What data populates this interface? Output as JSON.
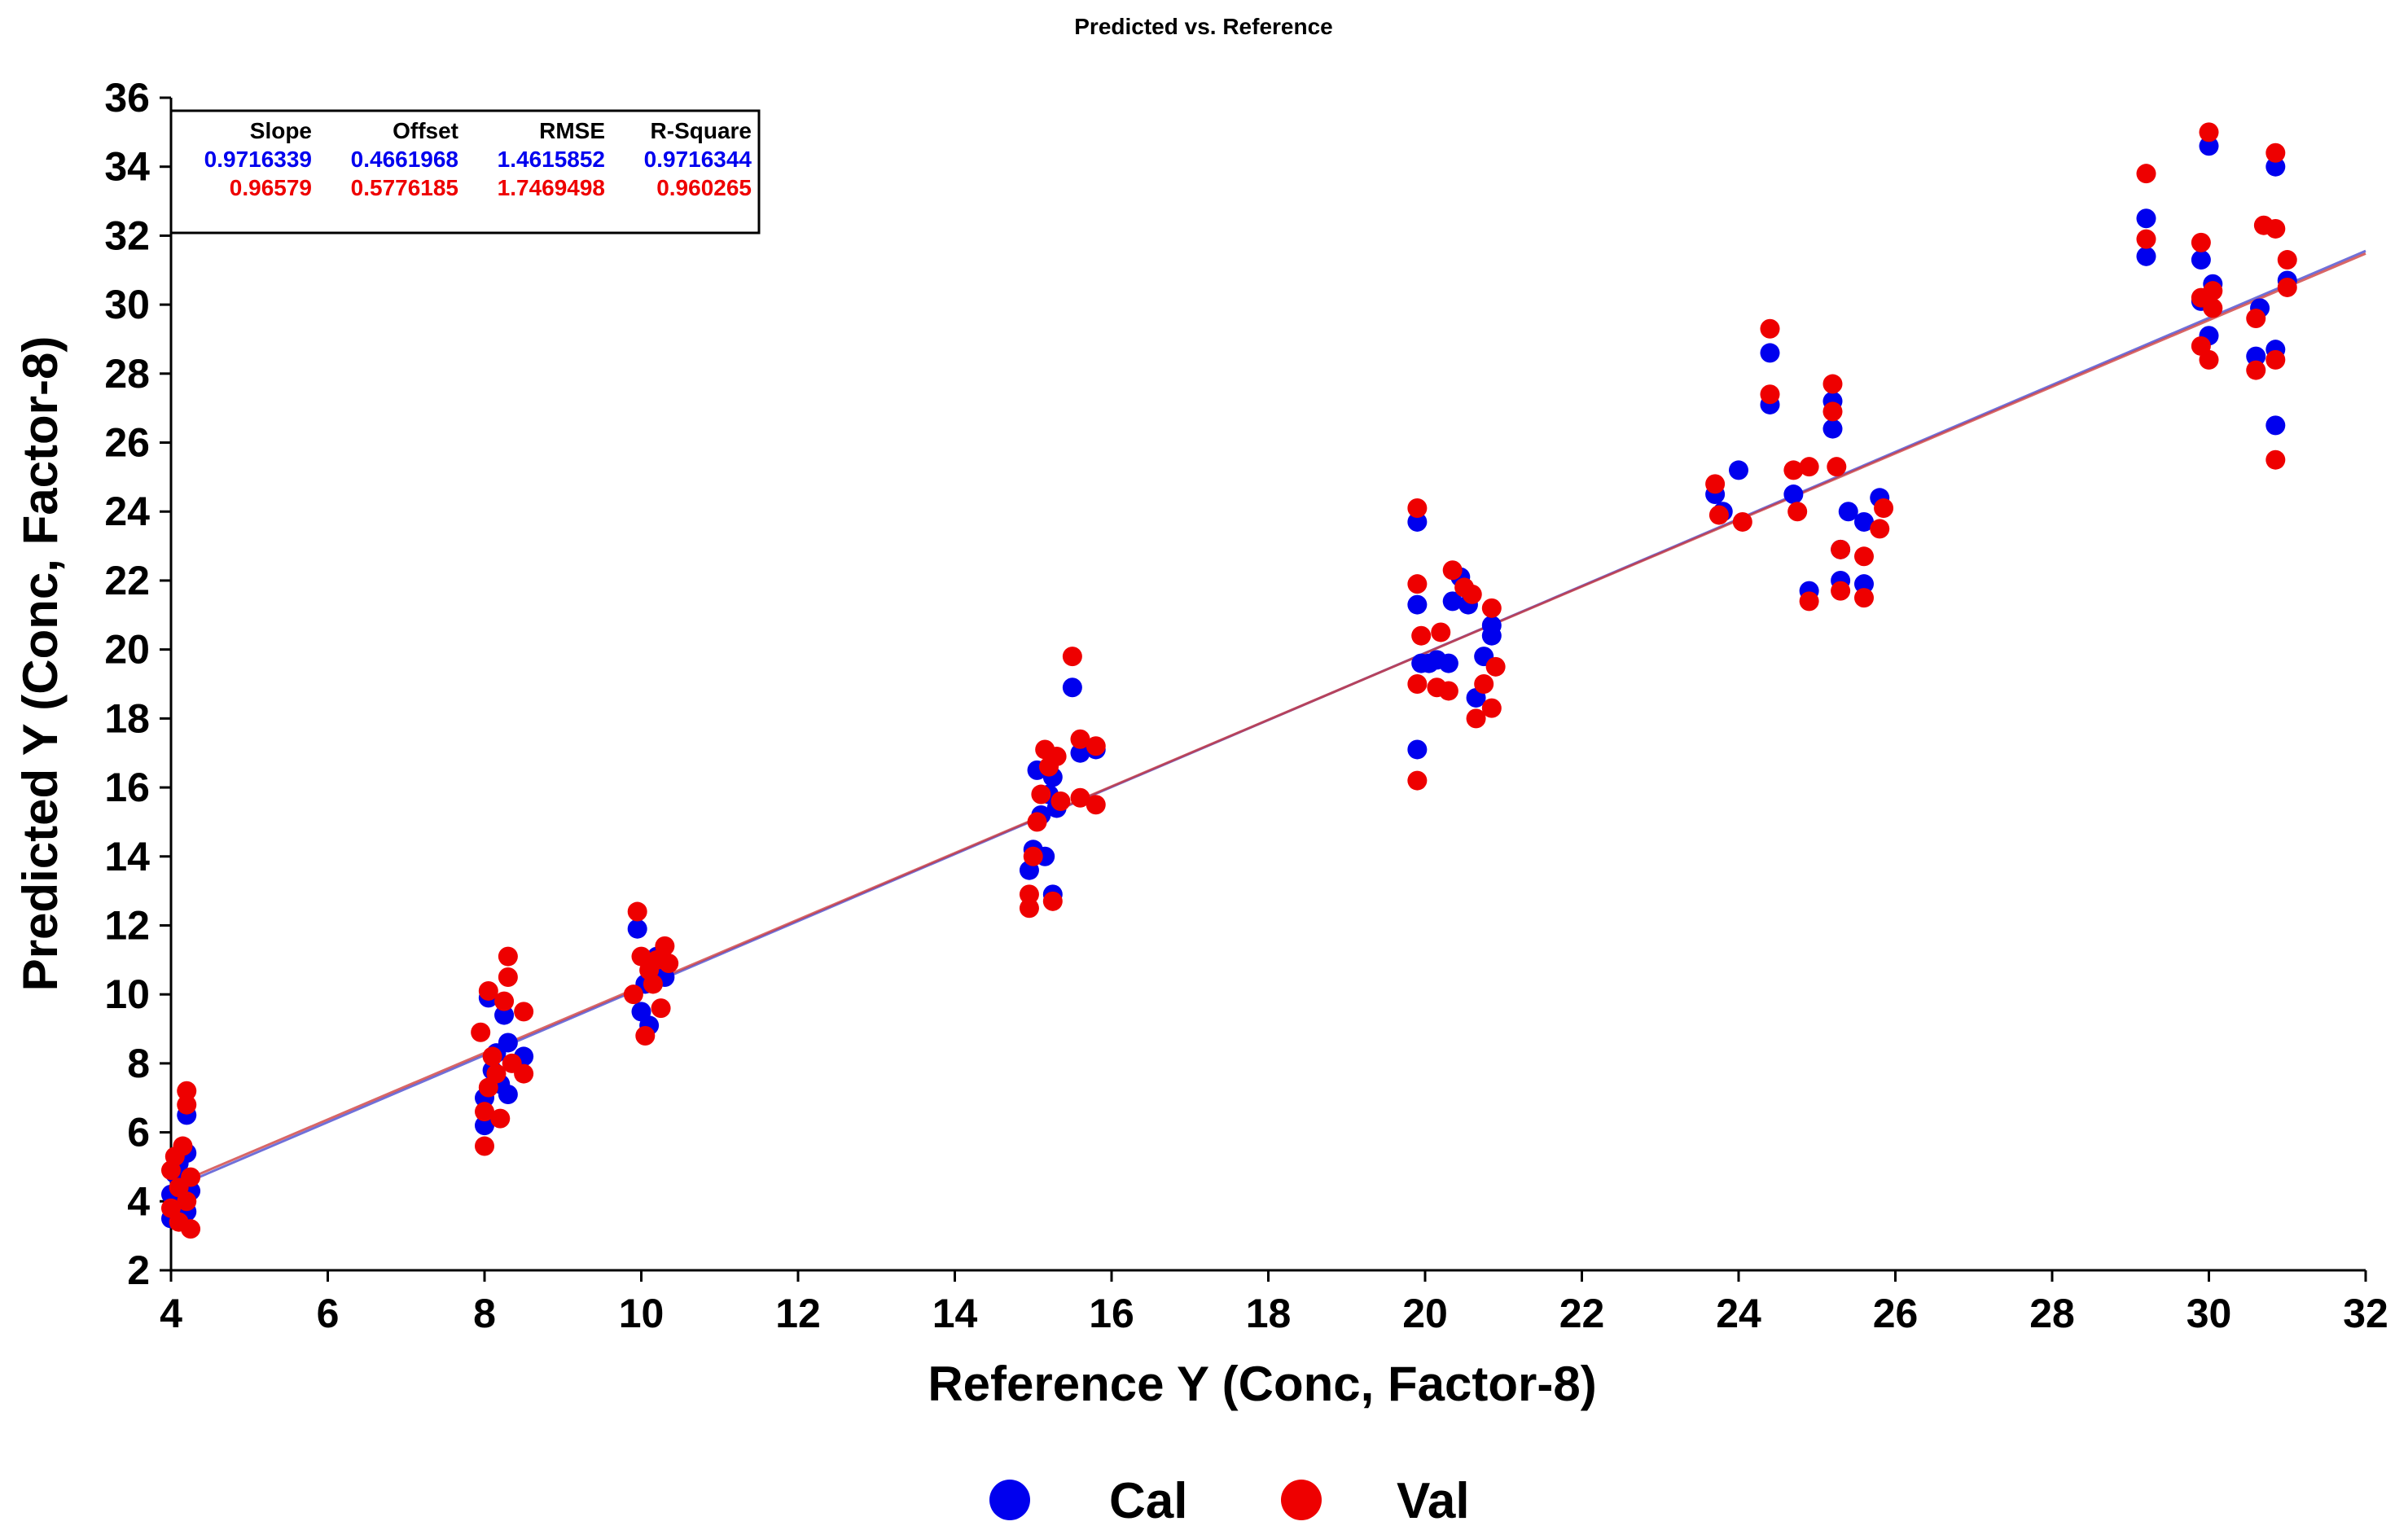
{
  "chart_data": {
    "type": "scatter",
    "title": "Predicted vs. Reference",
    "xlabel": "Reference Y (Conc, Factor-8)",
    "ylabel": "Predicted Y (Conc, Factor-8)",
    "xlim": [
      4,
      32
    ],
    "ylim": [
      2,
      36
    ],
    "xticks": [
      4,
      6,
      8,
      10,
      12,
      14,
      16,
      18,
      20,
      22,
      24,
      26,
      28,
      30,
      32
    ],
    "yticks": [
      2,
      4,
      6,
      8,
      10,
      12,
      14,
      16,
      18,
      20,
      22,
      24,
      26,
      28,
      30,
      32,
      34,
      36
    ],
    "grid": false,
    "legend_position": "bottom-center",
    "colors": {
      "cal": "#0000ee",
      "val": "#ee0000",
      "line": "#7a3a8c"
    },
    "stats": {
      "headers": [
        "Slope",
        "Offset",
        "RMSE",
        "R-Square"
      ],
      "rows": [
        {
          "series": "Cal",
          "values": [
            "0.9716339",
            "0.4661968",
            "1.4615852",
            "0.9716344"
          ]
        },
        {
          "series": "Val",
          "values": [
            "0.96579",
            "0.5776185",
            "1.7469498",
            "0.960265"
          ]
        }
      ]
    },
    "regression_lines": [
      {
        "series": "Cal",
        "slope": 0.9716339,
        "offset": 0.4661968
      },
      {
        "series": "Val",
        "slope": 0.96579,
        "offset": 0.5776185
      }
    ],
    "series": [
      {
        "name": "Cal",
        "points": [
          [
            4.0,
            3.5
          ],
          [
            4.0,
            4.2
          ],
          [
            4.05,
            4.8
          ],
          [
            4.1,
            5.1
          ],
          [
            4.1,
            3.9
          ],
          [
            4.15,
            4.6
          ],
          [
            4.2,
            5.4
          ],
          [
            4.2,
            6.5
          ],
          [
            4.2,
            3.7
          ],
          [
            4.25,
            4.3
          ],
          [
            8.0,
            6.2
          ],
          [
            8.0,
            7.0
          ],
          [
            8.05,
            9.9
          ],
          [
            8.1,
            7.8
          ],
          [
            8.15,
            8.3
          ],
          [
            8.2,
            7.4
          ],
          [
            8.25,
            9.4
          ],
          [
            8.3,
            7.1
          ],
          [
            8.3,
            8.6
          ],
          [
            8.5,
            8.2
          ],
          [
            9.95,
            11.9
          ],
          [
            10.0,
            9.5
          ],
          [
            10.05,
            10.3
          ],
          [
            10.1,
            9.1
          ],
          [
            10.15,
            10.8
          ],
          [
            10.2,
            11.1
          ],
          [
            10.3,
            10.5
          ],
          [
            14.95,
            13.6
          ],
          [
            15.0,
            14.2
          ],
          [
            15.05,
            16.5
          ],
          [
            15.1,
            15.2
          ],
          [
            15.15,
            14.0
          ],
          [
            15.2,
            15.8
          ],
          [
            15.25,
            16.3
          ],
          [
            15.25,
            12.9
          ],
          [
            15.3,
            15.4
          ],
          [
            15.5,
            18.9
          ],
          [
            15.6,
            17.0
          ],
          [
            15.8,
            17.1
          ],
          [
            19.9,
            17.1
          ],
          [
            19.9,
            21.3
          ],
          [
            19.9,
            23.7
          ],
          [
            19.95,
            19.6
          ],
          [
            20.05,
            19.6
          ],
          [
            20.15,
            19.7
          ],
          [
            20.3,
            19.6
          ],
          [
            20.35,
            21.4
          ],
          [
            20.45,
            22.1
          ],
          [
            20.55,
            21.3
          ],
          [
            20.65,
            18.6
          ],
          [
            20.75,
            19.8
          ],
          [
            20.85,
            20.4
          ],
          [
            20.85,
            20.7
          ],
          [
            23.7,
            24.5
          ],
          [
            23.8,
            24.0
          ],
          [
            24.0,
            25.2
          ],
          [
            24.4,
            28.6
          ],
          [
            24.4,
            27.1
          ],
          [
            24.7,
            24.5
          ],
          [
            24.9,
            21.7
          ],
          [
            25.2,
            27.2
          ],
          [
            25.2,
            26.4
          ],
          [
            25.3,
            22.9
          ],
          [
            25.3,
            22.0
          ],
          [
            25.4,
            24.0
          ],
          [
            25.6,
            23.7
          ],
          [
            25.6,
            21.9
          ],
          [
            25.8,
            24.4
          ],
          [
            29.2,
            32.5
          ],
          [
            29.2,
            31.4
          ],
          [
            29.9,
            31.3
          ],
          [
            29.9,
            30.1
          ],
          [
            30.0,
            34.6
          ],
          [
            30.0,
            29.1
          ],
          [
            30.05,
            30.6
          ],
          [
            30.6,
            28.5
          ],
          [
            30.65,
            29.9
          ],
          [
            30.85,
            34.0
          ],
          [
            30.85,
            28.7
          ],
          [
            30.85,
            26.5
          ],
          [
            31.0,
            30.7
          ]
        ]
      },
      {
        "name": "Val",
        "points": [
          [
            4.0,
            3.8
          ],
          [
            4.0,
            4.9
          ],
          [
            4.05,
            5.3
          ],
          [
            4.1,
            4.4
          ],
          [
            4.1,
            3.4
          ],
          [
            4.15,
            5.6
          ],
          [
            4.2,
            4.0
          ],
          [
            4.2,
            7.2
          ],
          [
            4.2,
            6.8
          ],
          [
            4.25,
            3.2
          ],
          [
            4.25,
            4.7
          ],
          [
            7.95,
            8.9
          ],
          [
            8.0,
            5.6
          ],
          [
            8.0,
            6.6
          ],
          [
            8.05,
            7.3
          ],
          [
            8.05,
            10.1
          ],
          [
            8.1,
            8.2
          ],
          [
            8.15,
            7.7
          ],
          [
            8.2,
            6.4
          ],
          [
            8.25,
            9.8
          ],
          [
            8.3,
            11.1
          ],
          [
            8.3,
            10.5
          ],
          [
            8.35,
            8.0
          ],
          [
            8.5,
            9.5
          ],
          [
            8.5,
            7.7
          ],
          [
            9.9,
            10.0
          ],
          [
            9.95,
            12.4
          ],
          [
            10.0,
            11.1
          ],
          [
            10.05,
            8.8
          ],
          [
            10.1,
            10.7
          ],
          [
            10.15,
            10.3
          ],
          [
            10.2,
            11.0
          ],
          [
            10.25,
            9.6
          ],
          [
            10.3,
            11.4
          ],
          [
            10.35,
            10.9
          ],
          [
            14.95,
            12.5
          ],
          [
            14.95,
            12.9
          ],
          [
            15.0,
            14.0
          ],
          [
            15.05,
            15.0
          ],
          [
            15.1,
            15.8
          ],
          [
            15.15,
            17.1
          ],
          [
            15.2,
            16.6
          ],
          [
            15.25,
            12.7
          ],
          [
            15.3,
            16.9
          ],
          [
            15.35,
            15.6
          ],
          [
            15.5,
            19.8
          ],
          [
            15.6,
            15.7
          ],
          [
            15.6,
            17.4
          ],
          [
            15.8,
            17.2
          ],
          [
            15.8,
            15.5
          ],
          [
            19.9,
            16.2
          ],
          [
            19.9,
            19.0
          ],
          [
            19.9,
            21.9
          ],
          [
            19.9,
            24.1
          ],
          [
            19.95,
            20.4
          ],
          [
            20.15,
            18.9
          ],
          [
            20.2,
            20.5
          ],
          [
            20.3,
            18.8
          ],
          [
            20.35,
            22.3
          ],
          [
            20.5,
            21.8
          ],
          [
            20.6,
            21.6
          ],
          [
            20.65,
            18.0
          ],
          [
            20.75,
            19.0
          ],
          [
            20.85,
            21.2
          ],
          [
            20.85,
            18.3
          ],
          [
            20.9,
            19.5
          ],
          [
            23.7,
            24.8
          ],
          [
            23.75,
            23.9
          ],
          [
            24.05,
            23.7
          ],
          [
            24.4,
            29.3
          ],
          [
            24.4,
            27.4
          ],
          [
            24.7,
            25.2
          ],
          [
            24.75,
            24.0
          ],
          [
            24.9,
            21.4
          ],
          [
            24.9,
            25.3
          ],
          [
            25.2,
            27.7
          ],
          [
            25.2,
            26.9
          ],
          [
            25.25,
            25.3
          ],
          [
            25.3,
            21.7
          ],
          [
            25.3,
            22.9
          ],
          [
            25.6,
            21.5
          ],
          [
            25.6,
            22.7
          ],
          [
            25.8,
            23.5
          ],
          [
            25.85,
            24.1
          ],
          [
            29.2,
            33.8
          ],
          [
            29.2,
            31.9
          ],
          [
            29.9,
            31.8
          ],
          [
            29.9,
            30.2
          ],
          [
            29.9,
            28.8
          ],
          [
            30.0,
            35.0
          ],
          [
            30.0,
            28.4
          ],
          [
            30.05,
            29.9
          ],
          [
            30.05,
            30.4
          ],
          [
            30.6,
            28.1
          ],
          [
            30.6,
            29.6
          ],
          [
            30.7,
            32.3
          ],
          [
            30.85,
            34.4
          ],
          [
            30.85,
            32.2
          ],
          [
            30.85,
            28.4
          ],
          [
            30.85,
            25.5
          ],
          [
            31.0,
            31.3
          ],
          [
            31.0,
            30.5
          ]
        ]
      }
    ]
  }
}
